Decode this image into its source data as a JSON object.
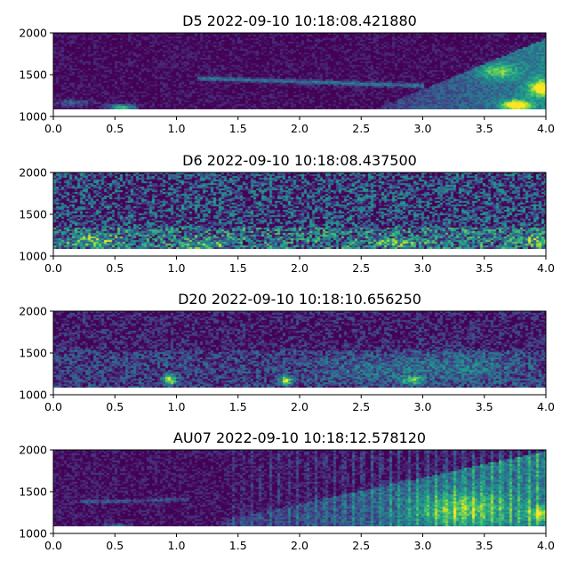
{
  "chart_data": [
    {
      "type": "heatmap",
      "title": "D5 2022-09-10 10:18:08.421880",
      "xlim": [
        0.0,
        4.0
      ],
      "ylim": [
        1000,
        2000
      ],
      "data_ylim": [
        1090,
        2000
      ],
      "xticks": [
        "0.0",
        "0.5",
        "1.0",
        "1.5",
        "2.0",
        "2.5",
        "3.0",
        "3.5",
        "4.0"
      ],
      "yticks": [
        "1000",
        "1500",
        "2000"
      ],
      "colormap": "viridis",
      "background_level": 0.02,
      "noise_level": 0.12,
      "features": [
        {
          "kind": "ramp",
          "x0": 2.6,
          "x1": 4.0,
          "yTop0": 1100,
          "yTop1": 1950,
          "level": 0.42
        },
        {
          "kind": "line",
          "x0": 1.15,
          "x1": 3.0,
          "y0": 1470,
          "y1": 1380,
          "width": 25,
          "level": 0.4
        },
        {
          "kind": "blob",
          "x": 0.55,
          "y": 1120,
          "rx": 0.1,
          "ry": 40,
          "level": 0.75
        },
        {
          "kind": "blob",
          "x": 0.15,
          "y": 1180,
          "rx": 0.15,
          "ry": 40,
          "level": 0.3
        },
        {
          "kind": "blob",
          "x": 3.75,
          "y": 1150,
          "rx": 0.12,
          "ry": 60,
          "level": 0.85
        },
        {
          "kind": "blob",
          "x": 3.95,
          "y": 1350,
          "rx": 0.1,
          "ry": 100,
          "level": 0.7
        },
        {
          "kind": "blob",
          "x": 3.6,
          "y": 1550,
          "rx": 0.15,
          "ry": 90,
          "level": 0.45
        }
      ]
    },
    {
      "type": "heatmap",
      "title": "D6 2022-09-10 10:18:08.437500",
      "xlim": [
        0.0,
        4.0
      ],
      "ylim": [
        1000,
        2000
      ],
      "data_ylim": [
        1090,
        2000
      ],
      "xticks": [
        "0.0",
        "0.5",
        "1.0",
        "1.5",
        "2.0",
        "2.5",
        "3.0",
        "3.5",
        "4.0"
      ],
      "yticks": [
        "1000",
        "1500",
        "2000"
      ],
      "colormap": "viridis",
      "background_level": 0.18,
      "noise_level": 0.4,
      "features": [
        {
          "kind": "band",
          "y0": 1090,
          "y1": 1350,
          "level": 0.18
        },
        {
          "kind": "blob",
          "x": 0.3,
          "y": 1200,
          "rx": 0.2,
          "ry": 60,
          "level": 0.35
        },
        {
          "kind": "blob",
          "x": 1.2,
          "y": 1150,
          "rx": 0.2,
          "ry": 50,
          "level": 0.3
        },
        {
          "kind": "blob",
          "x": 2.8,
          "y": 1180,
          "rx": 0.2,
          "ry": 50,
          "level": 0.3
        },
        {
          "kind": "blob",
          "x": 3.9,
          "y": 1200,
          "rx": 0.12,
          "ry": 60,
          "level": 0.3
        }
      ]
    },
    {
      "type": "heatmap",
      "title": "D20 2022-09-10 10:18:10.656250",
      "xlim": [
        0.0,
        4.0
      ],
      "ylim": [
        1000,
        2000
      ],
      "data_ylim": [
        1090,
        2000
      ],
      "xticks": [
        "0.0",
        "0.5",
        "1.0",
        "1.5",
        "2.0",
        "2.5",
        "3.0",
        "3.5",
        "4.0"
      ],
      "yticks": [
        "1000",
        "1500",
        "2000"
      ],
      "colormap": "viridis",
      "background_level": 0.06,
      "noise_level": 0.22,
      "features": [
        {
          "kind": "band",
          "y0": 1090,
          "y1": 1550,
          "level": 0.12
        },
        {
          "kind": "blob",
          "x": 0.93,
          "y": 1190,
          "rx": 0.05,
          "ry": 60,
          "level": 0.8
        },
        {
          "kind": "blob",
          "x": 1.88,
          "y": 1190,
          "rx": 0.05,
          "ry": 60,
          "level": 0.7
        },
        {
          "kind": "blob",
          "x": 2.9,
          "y": 1190,
          "rx": 0.08,
          "ry": 50,
          "level": 0.55
        },
        {
          "kind": "blob",
          "x": 3.3,
          "y": 1350,
          "rx": 0.5,
          "ry": 180,
          "level": 0.2
        },
        {
          "kind": "blob",
          "x": 2.5,
          "y": 1300,
          "rx": 0.4,
          "ry": 150,
          "level": 0.15
        }
      ]
    },
    {
      "type": "heatmap",
      "title": "AU07 2022-09-10 10:18:12.578120",
      "xlim": [
        0.0,
        4.0
      ],
      "ylim": [
        1000,
        2000
      ],
      "data_ylim": [
        1090,
        2000
      ],
      "xticks": [
        "0.0",
        "0.5",
        "1.0",
        "1.5",
        "2.0",
        "2.5",
        "3.0",
        "3.5",
        "4.0"
      ],
      "yticks": [
        "1000",
        "1500",
        "2000"
      ],
      "colormap": "viridis",
      "background_level": 0.03,
      "noise_level": 0.14,
      "features": [
        {
          "kind": "ramp",
          "x0": 1.3,
          "x1": 4.0,
          "yTop0": 1150,
          "yTop1": 2000,
          "level": 0.35
        },
        {
          "kind": "striations",
          "x0": 1.45,
          "x1": 4.0,
          "period": 0.075,
          "level": 0.3
        },
        {
          "kind": "blob",
          "x": 3.3,
          "y": 1300,
          "rx": 0.4,
          "ry": 200,
          "level": 0.4
        },
        {
          "kind": "blob",
          "x": 3.95,
          "y": 1250,
          "rx": 0.1,
          "ry": 80,
          "level": 0.5
        },
        {
          "kind": "line",
          "x0": 0.2,
          "x1": 1.1,
          "y0": 1390,
          "y1": 1420,
          "width": 20,
          "level": 0.25
        },
        {
          "kind": "blob",
          "x": 0.5,
          "y": 1110,
          "rx": 0.1,
          "ry": 25,
          "level": 0.4
        }
      ]
    }
  ]
}
